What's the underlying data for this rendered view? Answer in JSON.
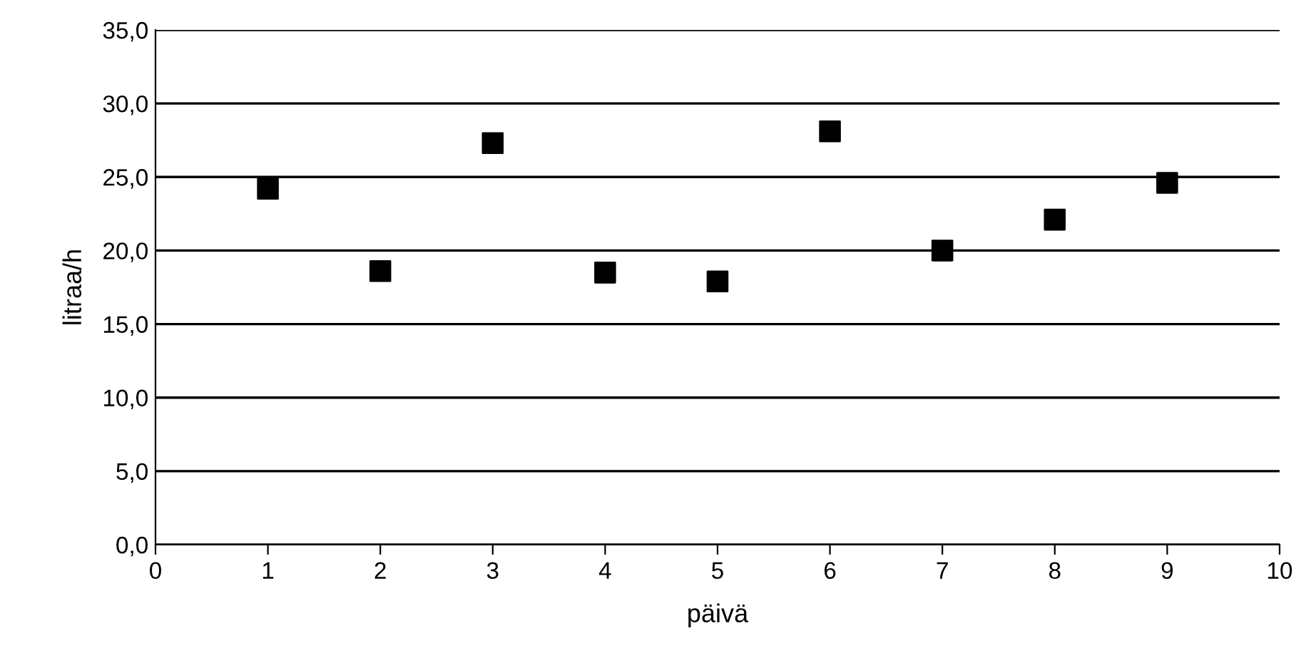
{
  "chart_data": {
    "type": "scatter",
    "xlabel": "päivä",
    "ylabel": "litraa/h",
    "x": [
      1,
      2,
      3,
      4,
      5,
      6,
      7,
      8,
      9
    ],
    "series": [
      {
        "color": "#000000",
        "values": [
          24.2,
          18.6,
          27.3,
          18.5,
          17.9,
          28.1,
          20.0,
          22.1,
          24.6
        ]
      }
    ],
    "marker": "square",
    "grid": "y",
    "legend": false,
    "xlim": [
      0,
      10
    ],
    "xticks": [
      0,
      1,
      2,
      3,
      4,
      5,
      6,
      7,
      8,
      9,
      10
    ],
    "ylim": [
      0,
      35
    ],
    "yticks": [
      {
        "value": 0,
        "label": "0,0"
      },
      {
        "value": 5,
        "label": "5,0"
      },
      {
        "value": 10,
        "label": "10,0"
      },
      {
        "value": 15,
        "label": "15,0"
      },
      {
        "value": 20,
        "label": "20,0"
      },
      {
        "value": 25,
        "label": "25,0"
      },
      {
        "value": 30,
        "label": "30,0"
      },
      {
        "value": 35,
        "label": "35,0"
      }
    ]
  }
}
